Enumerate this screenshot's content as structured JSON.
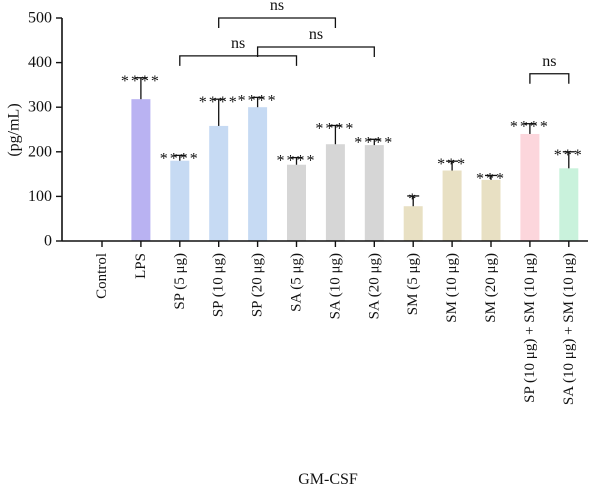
{
  "chart_data": {
    "type": "bar",
    "xlabel": "GM-CSF",
    "ylabel": "(pg/mL)",
    "ylim": [
      0,
      500
    ],
    "yticks": [
      0,
      100,
      200,
      300,
      400,
      500
    ],
    "grid": false,
    "categories": [
      "Control",
      "LPS",
      "SP (5 μg)",
      "SP (10 μg)",
      "SP (20 μg)",
      "SA (5 μg)",
      "SA (10 μg)",
      "SA (20 μg)",
      "SM (5 μg)",
      "SM (10 μg)",
      "SM (20 μg)",
      "SP (10 μg) + SM (10 μg)",
      "SA (10 μg) + SM (10 μg)"
    ],
    "values": [
      0,
      318,
      180,
      258,
      300,
      171,
      217,
      215,
      78,
      158,
      137,
      240,
      163
    ],
    "errors": [
      0,
      48,
      12,
      60,
      22,
      16,
      42,
      13,
      23,
      21,
      10,
      23,
      37
    ],
    "bar_colors": [
      "#b9b2f2",
      "#b9b2f2",
      "#c6daf3",
      "#c6daf3",
      "#c6daf3",
      "#d6d6d6",
      "#d6d6d6",
      "#d6d6d6",
      "#e8e0c3",
      "#e8e0c3",
      "#e8e0c3",
      "#fcd6dc",
      "#c9f2dc"
    ],
    "significance": [
      "",
      "****",
      "****",
      "****",
      "****",
      "****",
      "****",
      "****",
      "*",
      "***",
      "***",
      "****",
      "***"
    ],
    "comparisons": [
      {
        "from": 3,
        "to": 6,
        "label": "ns"
      },
      {
        "from": 2,
        "to": 5,
        "label": "ns"
      },
      {
        "from": 4,
        "to": 7,
        "label": "ns"
      },
      {
        "from": 11,
        "to": 12,
        "label": "ns"
      }
    ]
  }
}
